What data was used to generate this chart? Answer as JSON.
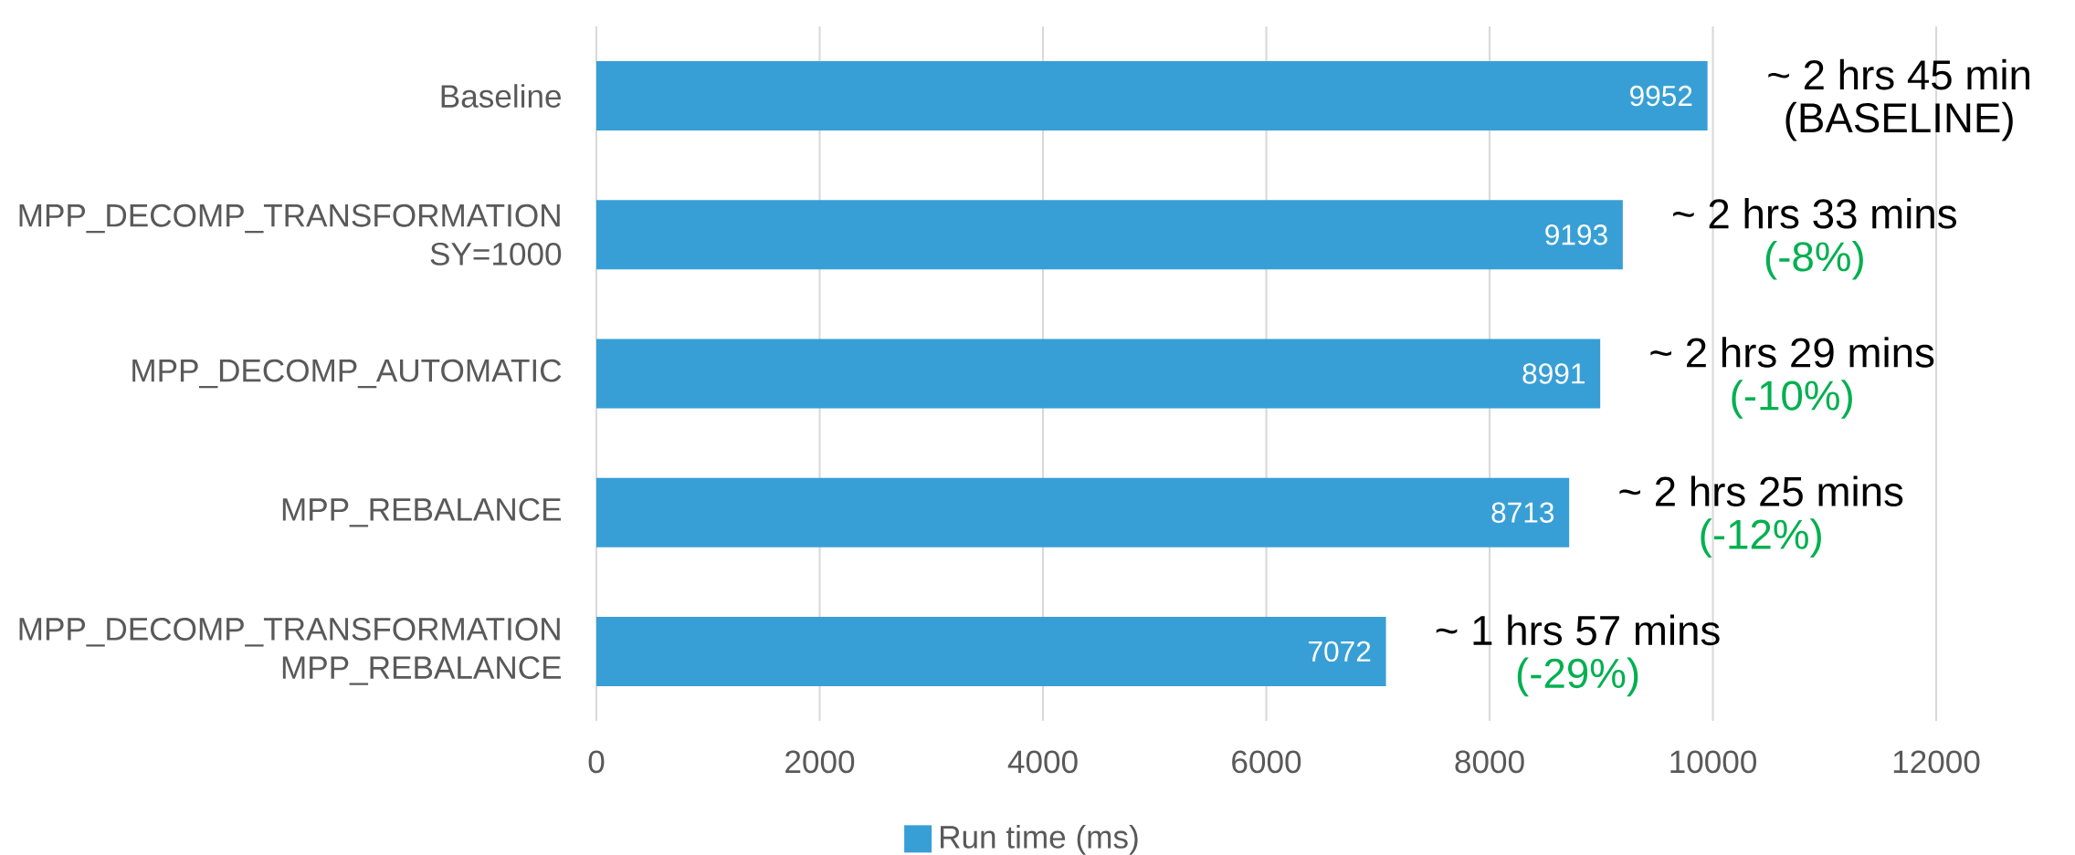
{
  "chart_data": {
    "type": "bar",
    "orientation": "horizontal",
    "categories": [
      "Baseline",
      "MPP_DECOMP_TRANSFORMATION SY=1000",
      "MPP_DECOMP_AUTOMATIC",
      "MPP_REBALANCE",
      "MPP_DECOMP_TRANSFORMATION MPP_REBALANCE"
    ],
    "series": [
      {
        "name": "Run time (ms)",
        "color": "#389fd6",
        "values": [
          9952,
          9193,
          8991,
          8713,
          7072
        ]
      }
    ],
    "xlim": [
      0,
      12000
    ],
    "xticks": [
      0,
      2000,
      4000,
      6000,
      8000,
      10000,
      12000
    ],
    "grid": "x",
    "legend": "bottom",
    "data_labels": true,
    "annotations": [
      {
        "text": "~ 2 hrs 45 min",
        "x": 9952,
        "y": "Baseline"
      },
      "(BASELINE)",
      {
        "text": "~ 2 hrs 33 mins",
        "x": 9193,
        "y": "MPP_DECOMP_TRANSFORMATION SY=1000"
      },
      "(-8%)",
      {
        "text": "~ 2 hrs 29 mins",
        "x": 8991,
        "y": "MPP_DECOMP_AUTOMATIC"
      },
      "(-10%)",
      {
        "text": "~ 2 hrs 25 mins",
        "x": 8713,
        "y": "MPP_REBALANCE"
      },
      "(-12%)",
      {
        "text": "~ 1 hrs 57 mins",
        "x": 7072,
        "y": "MPP_DECOMP_TRANSFORMATION MPP_REBALANCE"
      },
      "(-29%)"
    ]
  }
}
